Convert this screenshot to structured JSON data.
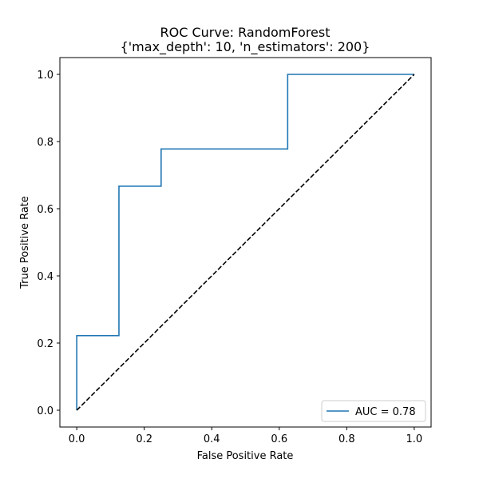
{
  "chart_data": {
    "type": "line",
    "title": "ROC Curve: RandomForest",
    "subtitle": "{'max_depth': 10, 'n_estimators': 200}",
    "xlabel": "False Positive Rate",
    "ylabel": "True Positive Rate",
    "xlim": [
      -0.05,
      1.05
    ],
    "ylim": [
      -0.05,
      1.05
    ],
    "xticks": [
      0.0,
      0.2,
      0.4,
      0.6,
      0.8,
      1.0
    ],
    "yticks": [
      0.0,
      0.2,
      0.4,
      0.6,
      0.8,
      1.0
    ],
    "xtick_labels": [
      "0.0",
      "0.2",
      "0.4",
      "0.6",
      "0.8",
      "1.0"
    ],
    "ytick_labels": [
      "0.0",
      "0.2",
      "0.4",
      "0.6",
      "0.8",
      "1.0"
    ],
    "grid": false,
    "legend_position": "lower-right",
    "series": [
      {
        "name": "AUC = 0.78",
        "style": "solid",
        "color": "#1f77b4",
        "x": [
          0.0,
          0.0,
          0.125,
          0.125,
          0.25,
          0.25,
          0.625,
          0.625,
          1.0
        ],
        "y": [
          0.0,
          0.222,
          0.222,
          0.667,
          0.667,
          0.778,
          0.778,
          1.0,
          1.0
        ]
      },
      {
        "style": "dashed",
        "color": "#000000",
        "x": [
          0.0,
          1.0
        ],
        "y": [
          0.0,
          1.0
        ]
      }
    ]
  }
}
